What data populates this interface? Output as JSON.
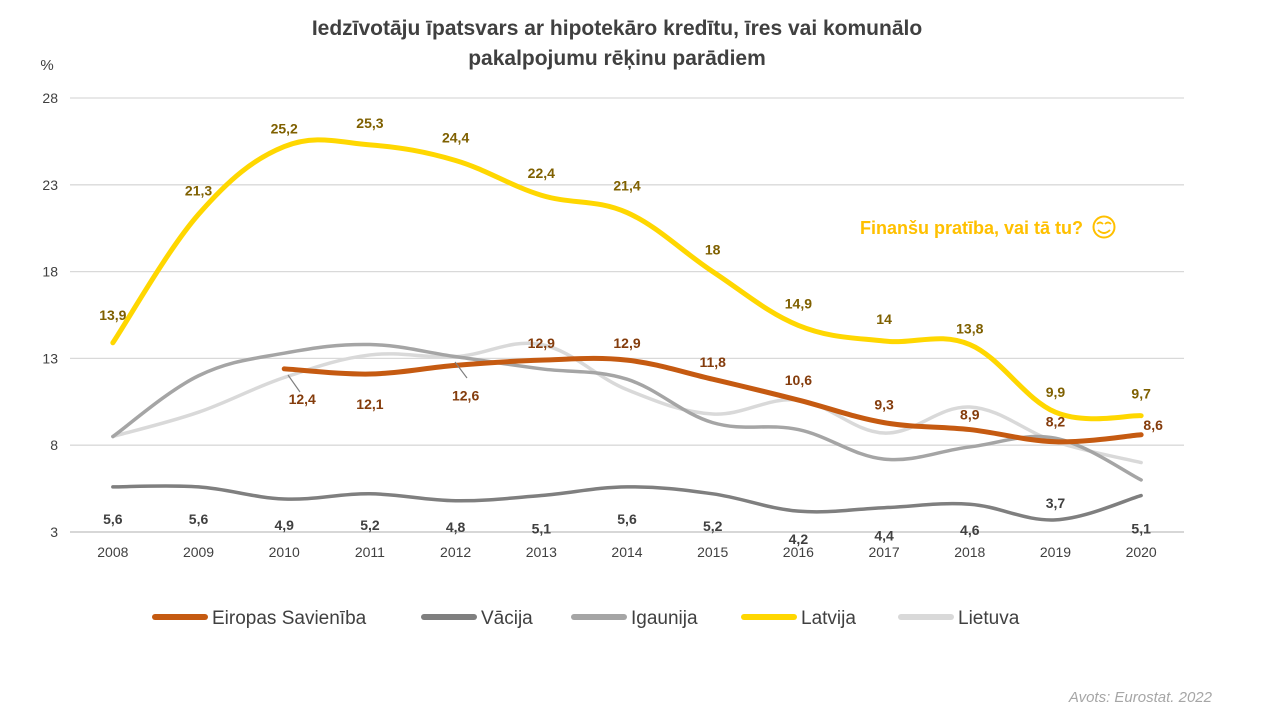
{
  "chart_data": {
    "type": "line",
    "title_lines": [
      "Iedzīvotāju īpatsvars ar hipotekāro kredītu, īres vai komunālo",
      "pakalpojumu rēķinu parādiem"
    ],
    "y_unit": "%",
    "ylim": [
      3,
      28
    ],
    "yticks": [
      "3",
      "8",
      "13",
      "18",
      "23",
      "28"
    ],
    "categories": [
      "2008",
      "2009",
      "2010",
      "2011",
      "2012",
      "2013",
      "2014",
      "2015",
      "2016",
      "2017",
      "2018",
      "2019",
      "2020"
    ],
    "grid": true,
    "legend_position": "bottom",
    "series": [
      {
        "name": "Eiropas Savienība",
        "color": "#c55a11",
        "label_color": "#843c0c",
        "values": [
          null,
          null,
          12.4,
          12.1,
          12.6,
          12.9,
          12.9,
          11.8,
          10.6,
          9.3,
          8.9,
          8.2,
          8.6
        ],
        "labels": [
          null,
          null,
          "12,4",
          "12,1",
          "12,6",
          "12,9",
          "12,9",
          "11,8",
          "10,6",
          "9,3",
          "8,9",
          "8,2",
          "8,6"
        ]
      },
      {
        "name": "Vācija",
        "color": "#7f7f7f",
        "label_color": "#404040",
        "values": [
          5.6,
          5.6,
          4.9,
          5.2,
          4.8,
          5.1,
          5.6,
          5.2,
          4.2,
          4.4,
          4.6,
          3.7,
          5.1
        ],
        "labels": [
          "5,6",
          "5,6",
          "4,9",
          "5,2",
          "4,8",
          "5,1",
          "5,6",
          "5,2",
          "4,2",
          "4,4",
          "4,6",
          "3,7",
          "5,1"
        ]
      },
      {
        "name": "Igaunija",
        "color": "#a5a5a5",
        "values": [
          8.5,
          12.0,
          13.3,
          13.8,
          13.1,
          12.4,
          11.8,
          9.3,
          8.9,
          7.2,
          7.9,
          8.4,
          6.0
        ],
        "labels": []
      },
      {
        "name": "Latvija",
        "color": "#ffd700",
        "label_color": "#7f6000",
        "values": [
          13.9,
          21.3,
          25.2,
          25.3,
          24.4,
          22.4,
          21.4,
          18.0,
          14.9,
          14.0,
          13.8,
          9.9,
          9.7
        ],
        "labels": [
          "13,9",
          "21,3",
          "25,2",
          "25,3",
          "24,4",
          "22,4",
          "21,4",
          "18",
          "14,9",
          "14",
          "13,8",
          "9,9",
          "9,7"
        ]
      },
      {
        "name": "Lietuva",
        "color": "#d9d9d9",
        "values": [
          8.5,
          9.9,
          11.9,
          13.2,
          13.1,
          13.8,
          11.2,
          9.8,
          10.6,
          8.7,
          10.2,
          8.2,
          7.0
        ],
        "labels": []
      }
    ],
    "annotation": {
      "text": "Finanšu pratība, vai tā tu?",
      "color": "#ffc000",
      "icon": "winking-face-icon"
    },
    "source": "Avots: Eurostat. 2022"
  }
}
